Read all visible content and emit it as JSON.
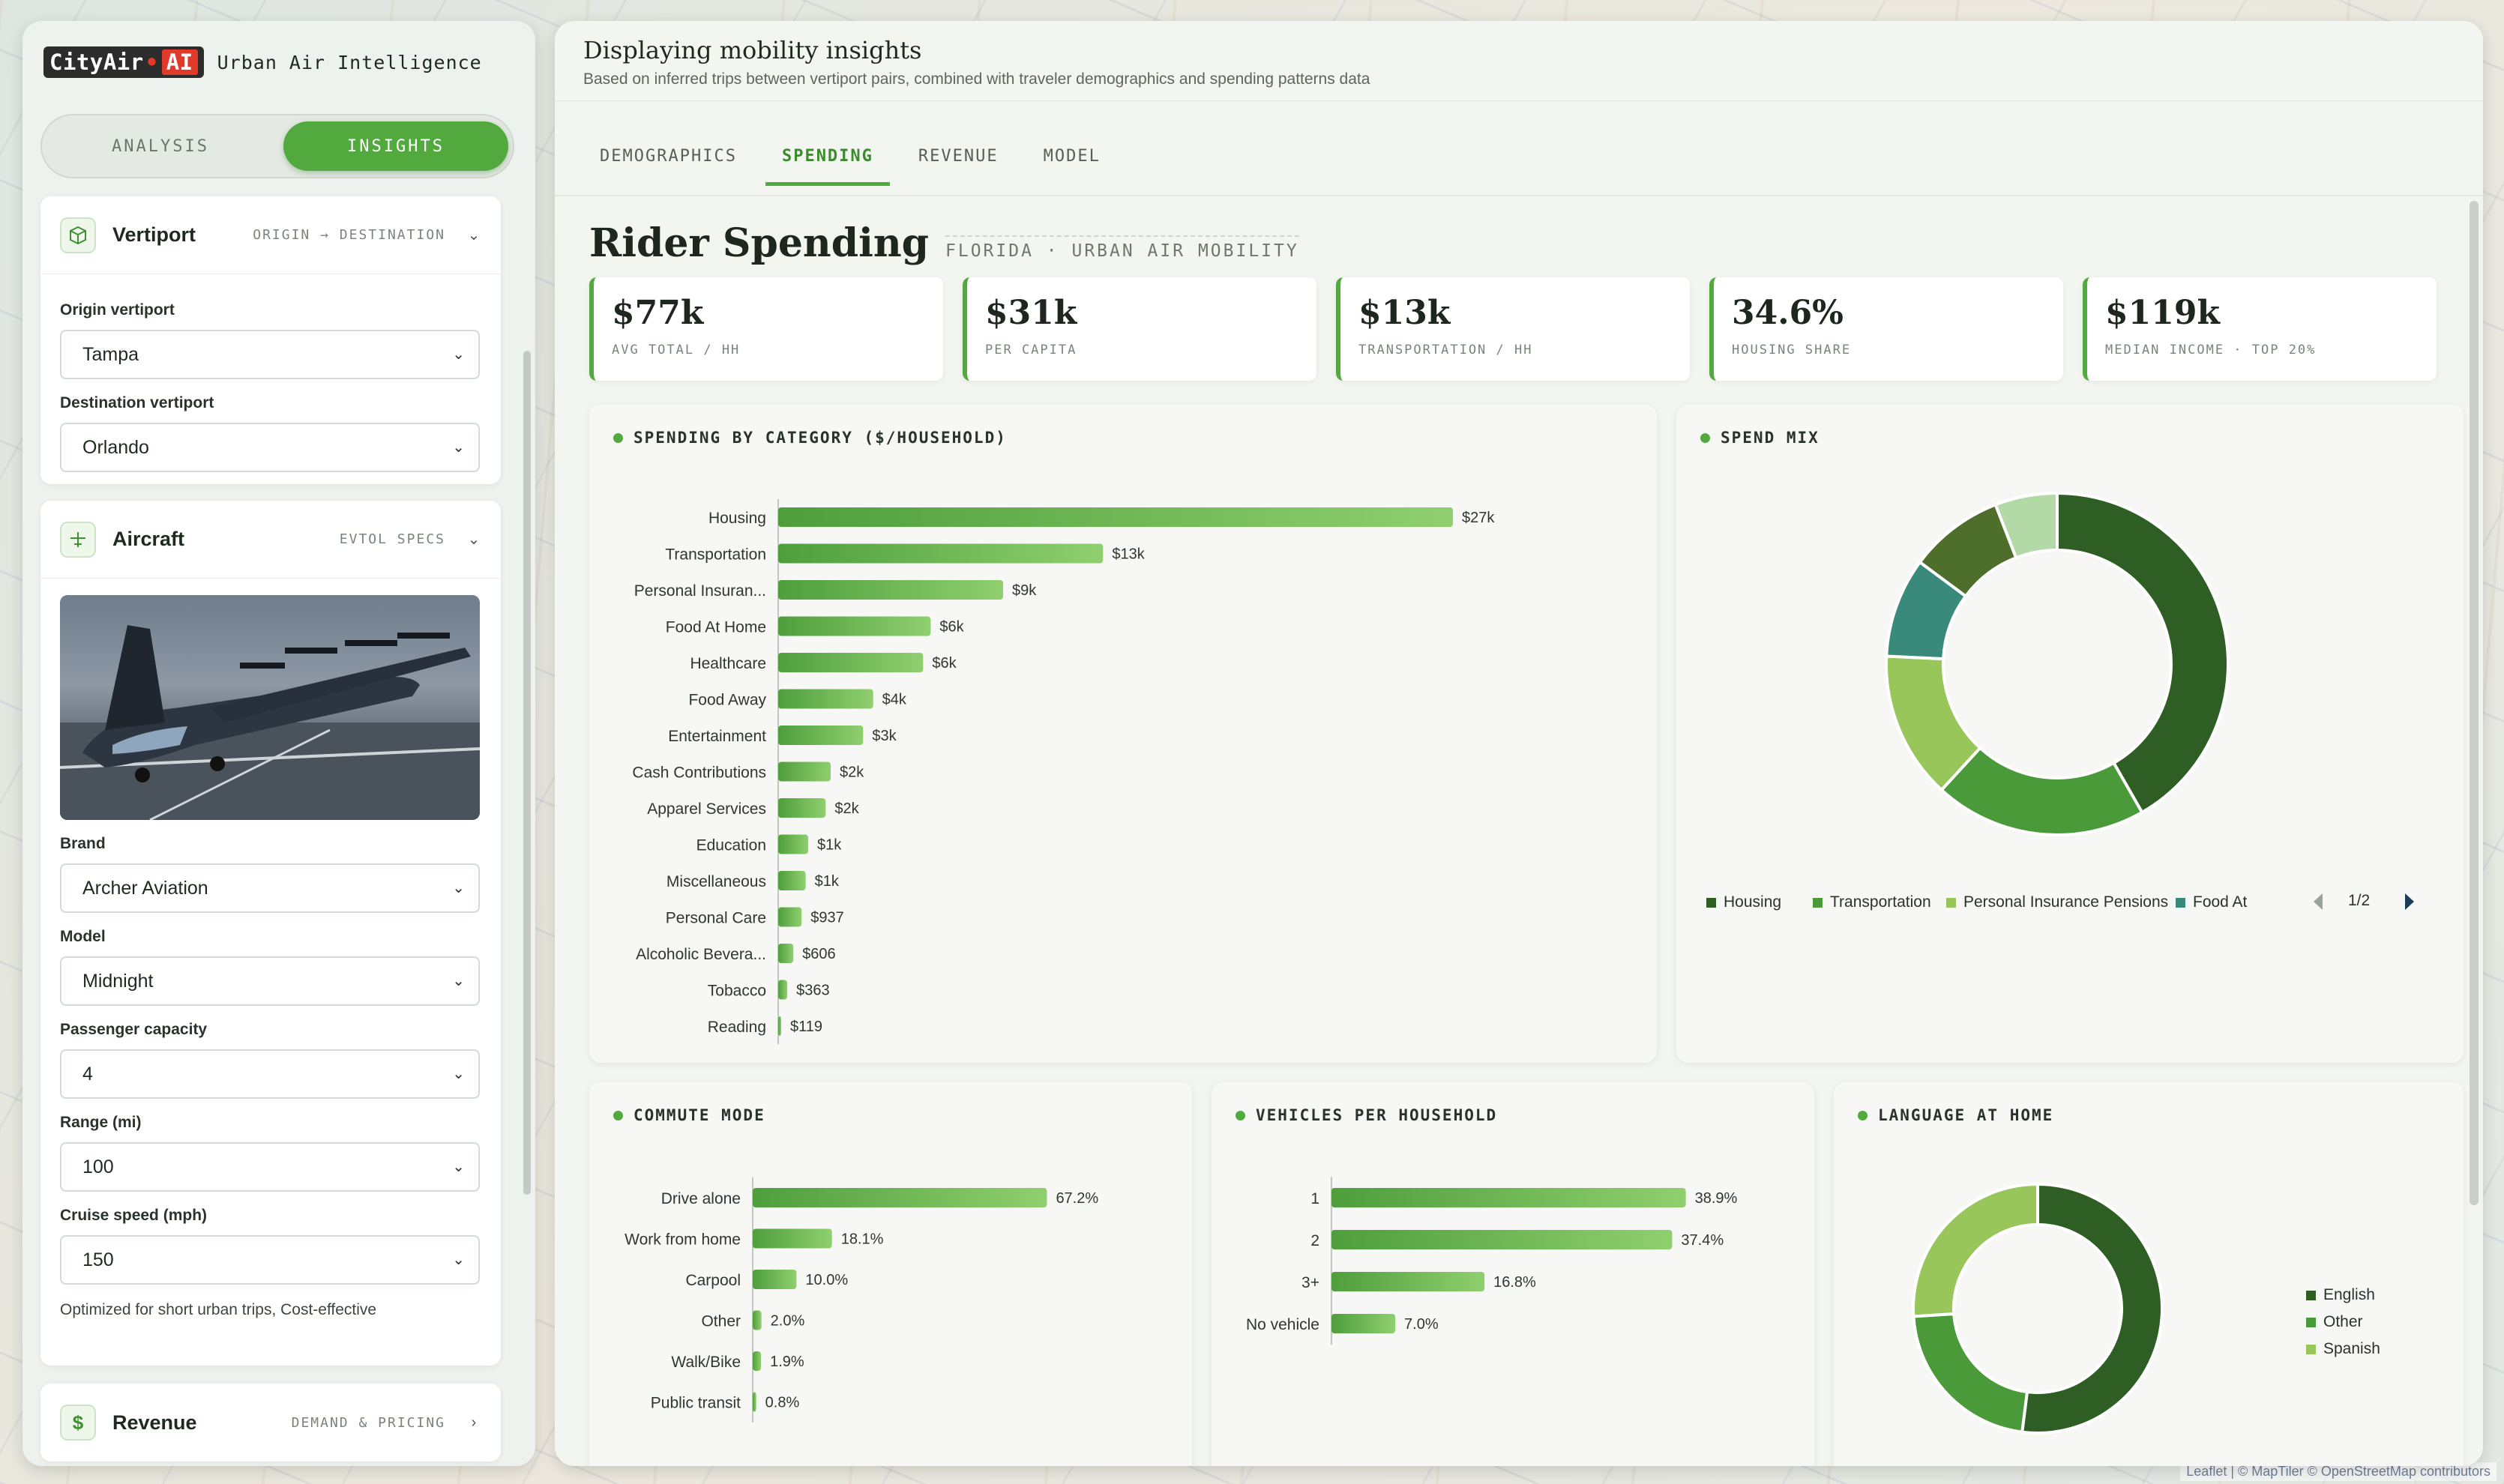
{
  "brand": {
    "logo_main": "CityAir",
    "logo_dot": "•",
    "logo_ai": "AI",
    "tagline": "Urban Air Intelligence"
  },
  "mode_toggle": {
    "analysis": "ANALYSIS",
    "insights": "INSIGHTS",
    "active": "insights"
  },
  "vertiport": {
    "title": "Vertiport",
    "subtitle": "ORIGIN → DESTINATION",
    "origin_label": "Origin vertiport",
    "origin_value": "Tampa",
    "destination_label": "Destination vertiport",
    "destination_value": "Orlando"
  },
  "aircraft": {
    "title": "Aircraft",
    "subtitle": "EVTOL SPECS",
    "brand_label": "Brand",
    "brand_value": "Archer Aviation",
    "model_label": "Model",
    "model_value": "Midnight",
    "capacity_label": "Passenger capacity",
    "capacity_value": "4",
    "range_label": "Range (mi)",
    "range_value": "100",
    "speed_label": "Cruise speed (mph)",
    "speed_value": "150",
    "note": "Optimized for short urban trips, Cost-effective"
  },
  "revenue": {
    "title": "Revenue",
    "subtitle": "DEMAND & PRICING",
    "icon": "$"
  },
  "header": {
    "title": "Displaying mobility insights",
    "subtitle": "Based on inferred trips between vertiport pairs, combined with traveler demographics and spending patterns data"
  },
  "tabs": [
    {
      "label": "DEMOGRAPHICS"
    },
    {
      "label": "SPENDING"
    },
    {
      "label": "REVENUE"
    },
    {
      "label": "MODEL"
    }
  ],
  "active_tab": "SPENDING",
  "section": {
    "title": "Rider Spending",
    "tag": "FLORIDA · URBAN AIR MOBILITY"
  },
  "kpis": [
    {
      "value": "$77k",
      "label": "AVG TOTAL / HH"
    },
    {
      "value": "$31k",
      "label": "PER CAPITA"
    },
    {
      "value": "$13k",
      "label": "TRANSPORTATION / HH"
    },
    {
      "value": "34.6%",
      "label": "HOUSING SHARE"
    },
    {
      "value": "$119k",
      "label": "MEDIAN INCOME · TOP 20%"
    }
  ],
  "colors": {
    "accent": "#52a93e",
    "bar_dark": "#4f9e3c",
    "bar_light": "#8fcf6f",
    "donut": [
      "#2f5e24",
      "#4a9a3a",
      "#98c65a",
      "#3a8a7c",
      "#4e6e2c",
      "#b3d9a7"
    ]
  },
  "chart_data": [
    {
      "id": "spending",
      "type": "bar",
      "title": "SPENDING BY CATEGORY ($/HOUSEHOLD)",
      "orientation": "horizontal",
      "categories": [
        "Housing",
        "Transportation",
        "Personal Insuran...",
        "Food At Home",
        "Healthcare",
        "Food Away",
        "Entertainment",
        "Cash Contributions",
        "Apparel Services",
        "Education",
        "Miscellaneous",
        "Personal Care",
        "Alcoholic Bevera...",
        "Tobacco",
        "Reading"
      ],
      "values": [
        27000,
        13000,
        9000,
        6100,
        5800,
        3800,
        3400,
        2100,
        1900,
        1200,
        1100,
        937,
        606,
        363,
        119
      ],
      "labels": [
        "$27k",
        "$13k",
        "$9k",
        "$6k",
        "$6k",
        "$4k",
        "$3k",
        "$2k",
        "$2k",
        "$1k",
        "$1k",
        "$937",
        "$606",
        "$363",
        "$119"
      ],
      "xlim": [
        0,
        30000
      ]
    },
    {
      "id": "spend-mix",
      "type": "pie",
      "title": "SPEND MIX",
      "categories": [
        "Housing",
        "Transportation",
        "Personal Insurance Pensions",
        "Food At Home",
        "Healthcare",
        "Food Away"
      ],
      "values": [
        27000,
        13000,
        9000,
        6100,
        5800,
        3800
      ],
      "legend_visible": [
        "Housing",
        "Transportation",
        "Personal Insurance Pensions",
        "Food At"
      ],
      "legend_page": "1/2"
    },
    {
      "id": "commute",
      "type": "bar",
      "title": "COMMUTE MODE",
      "orientation": "horizontal",
      "categories": [
        "Drive alone",
        "Work from home",
        "Carpool",
        "Other",
        "Walk/Bike",
        "Public transit"
      ],
      "values": [
        67.2,
        18.1,
        10.0,
        2.0,
        1.9,
        0.8
      ],
      "labels": [
        "67.2%",
        "18.1%",
        "10.0%",
        "2.0%",
        "1.9%",
        "0.8%"
      ],
      "xlim": [
        0,
        100
      ]
    },
    {
      "id": "vehicles",
      "type": "bar",
      "title": "VEHICLES PER HOUSEHOLD",
      "orientation": "horizontal",
      "categories": [
        "1",
        "2",
        "3+",
        "No vehicle"
      ],
      "values": [
        38.9,
        37.4,
        16.8,
        7.0
      ],
      "labels": [
        "38.9%",
        "37.4%",
        "16.8%",
        "7.0%"
      ],
      "xlim": [
        0,
        60
      ]
    },
    {
      "id": "language",
      "type": "pie",
      "title": "LANGUAGE AT HOME",
      "categories": [
        "English",
        "Other",
        "Spanish"
      ],
      "values": [
        52,
        22,
        26
      ],
      "legend_visible": [
        "English",
        "Other",
        "Spanish"
      ]
    }
  ],
  "attribution": "Leaflet | © MapTiler © OpenStreetMap contributors"
}
